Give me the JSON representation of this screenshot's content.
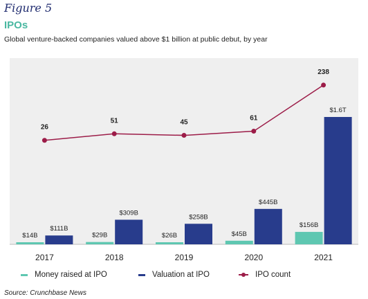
{
  "header": {
    "figure_label": "Figure 5",
    "title": "IPOs",
    "subtitle": "Global venture-backed companies valued above $1 billion at public debut, by year"
  },
  "source": "Source: Crunchbase News",
  "colors": {
    "money": "#5ec7b1",
    "valuation": "#283c8c",
    "ipo_line": "#9c1c48",
    "title_accent": "#4ab8a1"
  },
  "legend": [
    {
      "key": "money",
      "label": "Money raised at IPO"
    },
    {
      "key": "valuation",
      "label": "Valuation at IPO"
    },
    {
      "key": "ipo",
      "label": "IPO count"
    }
  ],
  "chart_data": {
    "type": "bar",
    "categories": [
      "2017",
      "2018",
      "2019",
      "2020",
      "2021"
    ],
    "series": [
      {
        "name": "Money raised at IPO",
        "unit": "$B",
        "values": [
          14,
          29,
          26,
          45,
          156
        ],
        "labels": [
          "$14B",
          "$29B",
          "$26B",
          "$45B",
          "$156B"
        ]
      },
      {
        "name": "Valuation at IPO",
        "unit": "$B",
        "values": [
          111,
          309,
          258,
          445,
          1600
        ],
        "labels": [
          "$111B",
          "$309B",
          "$258B",
          "$445B",
          "$1.6T"
        ]
      },
      {
        "name": "IPO count",
        "type": "line",
        "values": [
          26,
          51,
          45,
          61,
          238
        ],
        "labels": [
          "26",
          "51",
          "45",
          "61",
          "238"
        ]
      }
    ],
    "grid": false,
    "legend_position": "bottom"
  }
}
